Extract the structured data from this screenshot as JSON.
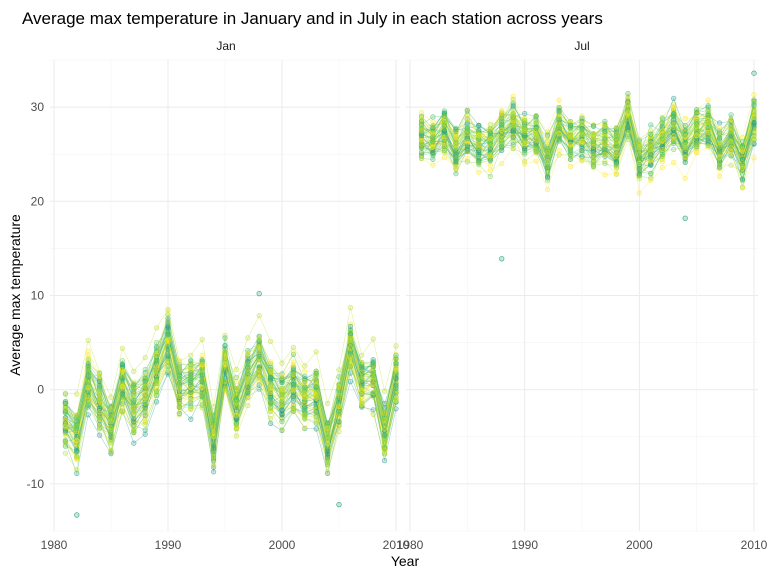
{
  "chart_data": {
    "type": "line",
    "title": "Average max temperature in January and in July in each station across years",
    "xlabel": "Year",
    "ylabel": "Average max temperature",
    "xlim": [
      1980,
      2010
    ],
    "ylim": [
      -15,
      35
    ],
    "x_ticks": [
      "1980",
      "1990",
      "2000",
      "2010"
    ],
    "y_ticks": [
      "-10",
      "0",
      "10",
      "20",
      "30"
    ],
    "grid": true,
    "color_scale": [
      "#2a9d8f",
      "#3fbc73",
      "#7ad151",
      "#bddf26",
      "#fde725"
    ],
    "panels": [
      {
        "label": "Jan",
        "x": [
          1981,
          1982,
          1983,
          1984,
          1985,
          1986,
          1987,
          1988,
          1989,
          1990,
          1991,
          1992,
          1993,
          1994,
          1995,
          1996,
          1997,
          1998,
          1999,
          2000,
          2001,
          2002,
          2003,
          2004,
          2005,
          2006,
          2007,
          2008,
          2009,
          2010
        ],
        "mean": [
          -3.5,
          -5.0,
          0.5,
          -1.5,
          -4.0,
          0.5,
          -2.0,
          -1.0,
          2.0,
          5.0,
          0.0,
          0.5,
          1.0,
          -5.5,
          2.5,
          -2.0,
          1.0,
          3.0,
          0.0,
          -1.0,
          0.5,
          -1.0,
          -0.5,
          -6.0,
          -1.5,
          4.5,
          0.5,
          1.0,
          -4.5,
          1.0
        ],
        "spread": 4.5,
        "range": [
          -13.3,
          10.2
        ]
      },
      {
        "label": "Jul",
        "x": [
          1981,
          1982,
          1983,
          1984,
          1985,
          1986,
          1987,
          1988,
          1989,
          1990,
          1991,
          1992,
          1993,
          1994,
          1995,
          1996,
          1997,
          1998,
          1999,
          2000,
          2001,
          2002,
          2003,
          2004,
          2005,
          2006,
          2007,
          2008,
          2009,
          2010
        ],
        "mean": [
          27.0,
          26.5,
          27.5,
          25.5,
          27.0,
          26.0,
          26.0,
          27.5,
          28.5,
          27.0,
          27.0,
          24.5,
          28.0,
          26.5,
          27.0,
          26.0,
          26.5,
          25.5,
          29.0,
          24.5,
          25.5,
          26.5,
          28.0,
          26.0,
          27.5,
          28.0,
          25.5,
          27.0,
          24.5,
          28.5
        ],
        "spread": 3.0,
        "range": [
          13.9,
          33.6
        ]
      }
    ],
    "n_stations": 60
  }
}
